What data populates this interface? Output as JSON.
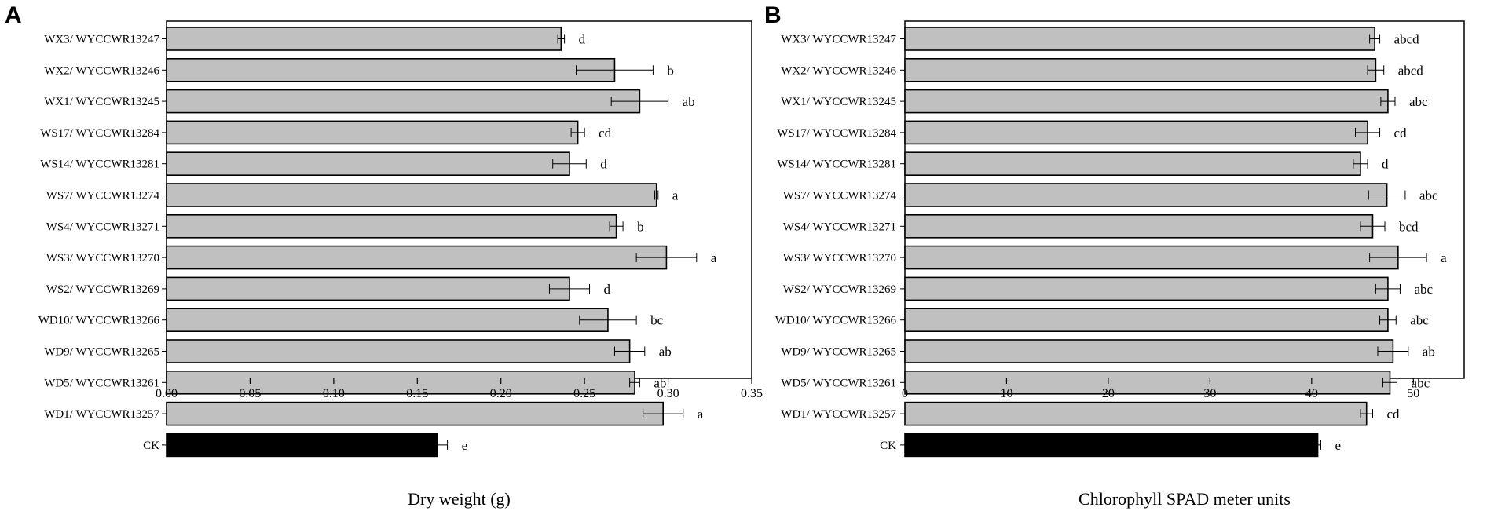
{
  "chart_data": [
    {
      "type": "bar",
      "orientation": "horizontal",
      "panel": "A",
      "categories": [
        "WX3/ WYCCWR13247",
        "WX2/ WYCCWR13246",
        "WX1/ WYCCWR13245",
        "WS17/ WYCCWR13284",
        "WS14/ WYCCWR13281",
        "WS7/ WYCCWR13274",
        "WS4/ WYCCWR13271",
        "WS3/ WYCCWR13270",
        "WS2/ WYCCWR13269",
        "WD10/ WYCCWR13266",
        "WD9/ WYCCWR13265",
        "WD5/ WYCCWR13261",
        "WD1/ WYCCWR13257",
        "CK"
      ],
      "values": [
        0.236,
        0.268,
        0.283,
        0.246,
        0.241,
        0.293,
        0.269,
        0.299,
        0.241,
        0.264,
        0.277,
        0.28,
        0.297,
        0.162
      ],
      "errors": [
        0.002,
        0.023,
        0.017,
        0.004,
        0.01,
        0.001,
        0.004,
        0.018,
        0.012,
        0.017,
        0.009,
        0.003,
        0.012,
        0.006
      ],
      "significance": [
        "d",
        "b",
        "ab",
        "cd",
        "d",
        "a",
        "b",
        "a",
        "d",
        "bc",
        "ab",
        "ab",
        "a",
        "e"
      ],
      "xlim": [
        0,
        0.35
      ],
      "xticks": [
        "0.00",
        "0.05",
        "0.10",
        "0.15",
        "0.20",
        "0.25",
        "0.30",
        "0.35"
      ],
      "xlabel": "Dry weight (g)",
      "colors": {
        "treatment": "#c0c0c0",
        "control": "#000000"
      }
    },
    {
      "type": "bar",
      "orientation": "horizontal",
      "panel": "B",
      "categories": [
        "WX3/ WYCCWR13247",
        "WX2/ WYCCWR13246",
        "WX1/ WYCCWR13245",
        "WS17/ WYCCWR13284",
        "WS14/ WYCCWR13281",
        "WS7/ WYCCWR13274",
        "WS4/ WYCCWR13271",
        "WS3/ WYCCWR13270",
        "WS2/ WYCCWR13269",
        "WD10/ WYCCWR13266",
        "WD9/ WYCCWR13265",
        "WD5/ WYCCWR13261",
        "WD1/ WYCCWR13257",
        "CK"
      ],
      "values": [
        46.2,
        46.3,
        47.5,
        45.5,
        44.8,
        47.4,
        46.0,
        48.5,
        47.5,
        47.5,
        48.0,
        47.7,
        45.4,
        40.6
      ],
      "errors": [
        0.5,
        0.8,
        0.7,
        1.2,
        0.7,
        1.8,
        1.2,
        2.8,
        1.2,
        0.8,
        1.5,
        0.7,
        0.6,
        0.3
      ],
      "significance": [
        "abcd",
        "abcd",
        "abc",
        "cd",
        "d",
        "abc",
        "bcd",
        "a",
        "abc",
        "abc",
        "ab",
        "abc",
        "cd",
        "e"
      ],
      "xlim": [
        0,
        55
      ],
      "xticks": [
        "0",
        "10",
        "20",
        "30",
        "40",
        "50"
      ],
      "xlabel": "Chlorophyll SPAD meter units",
      "colors": {
        "treatment": "#c0c0c0",
        "control": "#000000"
      }
    }
  ]
}
